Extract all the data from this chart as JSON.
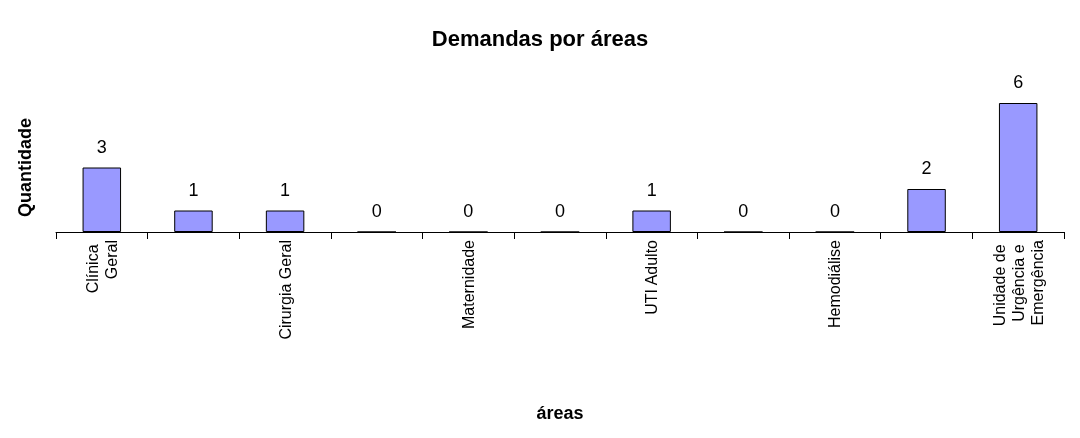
{
  "chart_data": {
    "type": "bar",
    "title": "Demandas por áreas",
    "xlabel": "áreas",
    "ylabel": "Quantidade",
    "categories": [
      "Clínica Geral",
      null,
      "Cirurgia Geral",
      null,
      "Maternidade",
      null,
      "UTI Adulto",
      null,
      "Hemodiálise",
      null,
      "Unidade de Urgência e Emergência"
    ],
    "values": [
      3,
      1,
      1,
      0,
      0,
      0,
      1,
      0,
      0,
      2,
      6
    ],
    "color": "#9999ff",
    "data_labels": true
  }
}
